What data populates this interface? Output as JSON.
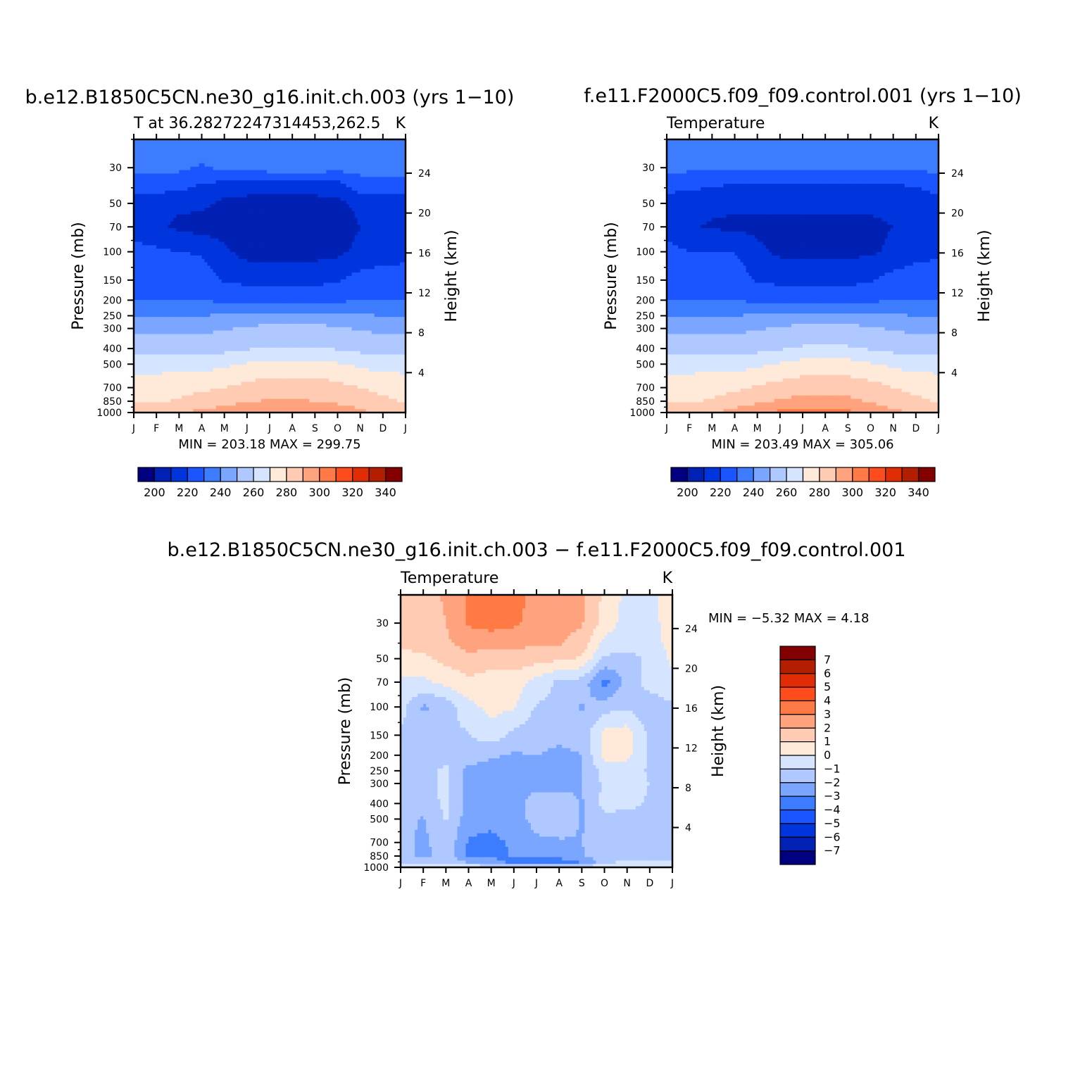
{
  "palette": {
    "cool": [
      "#000080",
      "#0021b4",
      "#0034dc",
      "#1a55ff",
      "#3d7cff",
      "#7aa6ff",
      "#afc8ff",
      "#d5e5ff"
    ],
    "warm": [
      "#ffe9d9",
      "#ffcbb3",
      "#ffa37f",
      "#ff7a45",
      "#ff4c1c",
      "#e02d06",
      "#b31d00",
      "#820000"
    ]
  },
  "chart_data": [
    {
      "type": "heatmap",
      "title": "b.e12.B1850C5CN.ne30_g16.init.ch.003 (yrs 1−10)",
      "left_string": "T at 36.28272247314453,262.5",
      "right_string": "K",
      "xlabel": "",
      "ylabel": "Pressure (mb)",
      "ylabel_right": "Height (km)",
      "x_ticks": [
        "J",
        "F",
        "M",
        "A",
        "M",
        "J",
        "J",
        "A",
        "S",
        "O",
        "N",
        "D",
        "J"
      ],
      "y_ticks": [
        30,
        50,
        70,
        100,
        150,
        200,
        250,
        300,
        400,
        500,
        700,
        850,
        1000
      ],
      "y_right_ticks": [
        24,
        20,
        16,
        12,
        8,
        4
      ],
      "levels": [
        200,
        210,
        220,
        230,
        240,
        250,
        260,
        270,
        280,
        290,
        300,
        310,
        320,
        330,
        340
      ],
      "colorbar_labels": [
        "200",
        "220",
        "240",
        "260",
        "280",
        "300",
        "320",
        "340"
      ],
      "min_max": "MIN = 203.18 MAX = 299.75",
      "values": [
        [
          236,
          236,
          236,
          236,
          236,
          236,
          236,
          236,
          236,
          236,
          236,
          236,
          236
        ],
        [
          233,
          233,
          232,
          229,
          232,
          233,
          235,
          236,
          235,
          234,
          233,
          233,
          233
        ],
        [
          224,
          224,
          222,
          218,
          214,
          212,
          212,
          212,
          212,
          213,
          225,
          227,
          226
        ],
        [
          212,
          212,
          212,
          212,
          208,
          208,
          208,
          208,
          208,
          208,
          212,
          212,
          212
        ],
        [
          214,
          212,
          208,
          206,
          206,
          206,
          206,
          206,
          206,
          206,
          210,
          214,
          216
        ],
        [
          224,
          222,
          220,
          219,
          212,
          206,
          206,
          206,
          206,
          208,
          212,
          214,
          216
        ],
        [
          226,
          226,
          226,
          226,
          219,
          218,
          218,
          218,
          218,
          219,
          224,
          226,
          226
        ],
        [
          230,
          230,
          230,
          230,
          228,
          226,
          225,
          225,
          225,
          228,
          230,
          230,
          230
        ],
        [
          240,
          240,
          240,
          240,
          241,
          243,
          245,
          245,
          245,
          243,
          241,
          240,
          240
        ],
        [
          248,
          248,
          248,
          248,
          249,
          251,
          253,
          253,
          253,
          251,
          249,
          248,
          248
        ],
        [
          256,
          256,
          256,
          256,
          257,
          259,
          261,
          261,
          261,
          259,
          257,
          256,
          256
        ],
        [
          266,
          266,
          266,
          266,
          268,
          271,
          273,
          273,
          273,
          271,
          268,
          266,
          266
        ],
        [
          276,
          276,
          277,
          278,
          280,
          283,
          285,
          285,
          285,
          283,
          280,
          277,
          276
        ],
        [
          279,
          279,
          281,
          284,
          287,
          289,
          291,
          291,
          290,
          288,
          285,
          282,
          279
        ],
        [
          282,
          283,
          285,
          288,
          291,
          294,
          296,
          297,
          295,
          292,
          289,
          285,
          282
        ],
        [
          285,
          286,
          289,
          293,
          296,
          299,
          300,
          300,
          299,
          296,
          292,
          288,
          285
        ]
      ]
    },
    {
      "type": "heatmap",
      "title": "f.e11.F2000C5.f09_f09.control.001 (yrs 1−10)",
      "left_string": "Temperature",
      "right_string": "K",
      "xlabel": "",
      "ylabel": "Pressure (mb)",
      "ylabel_right": "Height (km)",
      "x_ticks": [
        "J",
        "F",
        "M",
        "A",
        "M",
        "J",
        "J",
        "A",
        "S",
        "O",
        "N",
        "D",
        "J"
      ],
      "y_ticks": [
        30,
        50,
        70,
        100,
        150,
        200,
        250,
        300,
        400,
        500,
        700,
        850,
        1000
      ],
      "y_right_ticks": [
        24,
        20,
        16,
        12,
        8,
        4
      ],
      "levels": [
        200,
        210,
        220,
        230,
        240,
        250,
        260,
        270,
        280,
        290,
        300,
        310,
        320,
        330,
        340
      ],
      "colorbar_labels": [
        "200",
        "220",
        "240",
        "260",
        "280",
        "300",
        "320",
        "340"
      ],
      "min_max": "MIN = 203.49 MAX = 305.06",
      "values": [
        [
          234,
          234,
          234,
          234,
          234,
          234,
          234,
          234,
          234,
          234,
          234,
          234,
          234
        ],
        [
          232,
          232,
          232,
          232,
          232,
          232,
          232,
          232,
          232,
          232,
          232,
          232,
          232
        ],
        [
          224,
          222,
          219,
          218,
          216,
          216,
          216,
          216,
          216,
          216,
          218,
          219,
          226
        ],
        [
          212,
          212,
          212,
          212,
          212,
          212,
          212,
          212,
          212,
          212,
          212,
          212,
          212
        ],
        [
          214,
          211,
          209,
          208,
          208,
          208,
          208,
          208,
          208,
          208,
          210,
          214,
          216
        ],
        [
          224,
          220,
          220,
          220,
          212,
          208,
          208,
          208,
          208,
          208,
          212,
          216,
          218
        ],
        [
          226,
          226,
          226,
          226,
          219,
          218,
          218,
          218,
          218,
          219,
          224,
          226,
          226
        ],
        [
          230,
          230,
          230,
          230,
          228,
          226,
          225,
          225,
          225,
          228,
          230,
          230,
          230
        ],
        [
          240,
          240,
          240,
          240,
          241,
          243,
          245,
          245,
          245,
          243,
          241,
          240,
          240
        ],
        [
          248,
          248,
          248,
          248,
          249,
          251,
          253,
          253,
          253,
          251,
          249,
          248,
          248
        ],
        [
          256,
          256,
          256,
          256,
          257,
          259,
          261,
          262,
          261,
          259,
          257,
          256,
          256
        ],
        [
          266,
          266,
          266,
          266,
          268,
          271,
          274,
          274,
          274,
          271,
          268,
          266,
          266
        ],
        [
          276,
          276,
          277,
          278,
          281,
          284,
          286,
          286,
          286,
          284,
          280,
          277,
          276
        ],
        [
          279,
          279,
          281,
          284,
          288,
          291,
          293,
          293,
          292,
          289,
          285,
          282,
          279
        ],
        [
          282,
          283,
          285,
          289,
          293,
          297,
          299,
          299,
          297,
          293,
          289,
          285,
          282
        ],
        [
          285,
          286,
          289,
          294,
          298,
          302,
          304,
          304,
          302,
          298,
          293,
          288,
          285
        ]
      ]
    },
    {
      "type": "heatmap",
      "title": "b.e12.B1850C5CN.ne30_g16.init.ch.003 − f.e11.F2000C5.f09_f09.control.001",
      "left_string": "Temperature",
      "right_string": "K",
      "xlabel": "",
      "ylabel": "Pressure (mb)",
      "ylabel_right": "Height (km)",
      "x_ticks": [
        "J",
        "F",
        "M",
        "A",
        "M",
        "J",
        "J",
        "A",
        "S",
        "O",
        "N",
        "D",
        "J"
      ],
      "y_ticks": [
        30,
        50,
        70,
        100,
        150,
        200,
        250,
        300,
        400,
        500,
        700,
        850,
        1000
      ],
      "y_right_ticks": [
        24,
        20,
        16,
        12,
        8,
        4
      ],
      "levels": [
        -7,
        -6,
        -5,
        -4,
        -3,
        -2,
        -1,
        0,
        1,
        2,
        3,
        4,
        5,
        6,
        7
      ],
      "colorbar_labels": [
        "7",
        "6",
        "5",
        "4",
        "3",
        "2",
        "1",
        "0",
        "−1",
        "−2",
        "−3",
        "−4",
        "−5",
        "−6",
        "−7"
      ],
      "min_max": "MIN =   −5.32  MAX =     4.18",
      "values": [
        [
          1.6,
          1.7,
          2.1,
          3.2,
          3.6,
          3.4,
          2.6,
          2.3,
          2.1,
          0.8,
          -0.3,
          -0.3,
          0.6
        ],
        [
          1.5,
          1.6,
          2.0,
          3.1,
          3.4,
          3.2,
          2.6,
          2.3,
          2.1,
          0.6,
          -0.5,
          -0.4,
          0.5
        ],
        [
          1.2,
          1.4,
          1.8,
          2.5,
          2.4,
          2.2,
          2.2,
          2.1,
          1.6,
          -0.3,
          -0.6,
          -0.4,
          0.3
        ],
        [
          0.6,
          0.8,
          1.3,
          1.6,
          1.5,
          1.6,
          1.4,
          1.2,
          0.9,
          -1.2,
          -1.4,
          -0.8,
          0.2
        ],
        [
          -0.2,
          -0.2,
          0.3,
          0.8,
          0.5,
          0.5,
          -0.4,
          -1.2,
          -1.4,
          -3.4,
          -1.6,
          -0.6,
          -0.2
        ],
        [
          -0.6,
          -2.2,
          -1.6,
          -0.3,
          0.3,
          0.1,
          -1.1,
          -1.3,
          -2.1,
          -1.4,
          -1.2,
          -1.6,
          -1.2
        ],
        [
          -1.2,
          -1.3,
          -1.2,
          -1.1,
          -0.4,
          -1.3,
          -1.6,
          -1.8,
          -1.7,
          0.4,
          0.6,
          -1.3,
          -1.4
        ],
        [
          -1.3,
          -1.4,
          -1.3,
          -1.5,
          -1.9,
          -2.1,
          -2.0,
          -2.2,
          -2.0,
          0.3,
          0.3,
          -1.2,
          -1.3
        ],
        [
          -1.3,
          -1.4,
          -0.8,
          -2.3,
          -2.4,
          -2.3,
          -2.2,
          -2.3,
          -2.0,
          -0.6,
          -0.6,
          -1.1,
          -1.2
        ],
        [
          -1.3,
          -1.4,
          -0.7,
          -2.4,
          -2.3,
          -2.2,
          -2.3,
          -2.4,
          -2.0,
          -0.8,
          -0.7,
          -1.0,
          -1.1
        ],
        [
          -1.4,
          -1.5,
          -0.8,
          -2.3,
          -2.4,
          -2.4,
          -1.6,
          -1.5,
          -2.1,
          -0.7,
          -0.8,
          -1.1,
          -1.2
        ],
        [
          -1.6,
          -2.1,
          -0.9,
          -2.6,
          -2.7,
          -2.5,
          -1.6,
          -1.5,
          -2.1,
          -1.2,
          -1.3,
          -1.1,
          -1.0
        ],
        [
          -1.5,
          -2.3,
          -1.2,
          -3.1,
          -3.3,
          -2.8,
          -2.2,
          -2.1,
          -2.0,
          -1.4,
          -1.2,
          -1.3,
          -1.2
        ],
        [
          -1.4,
          -2.4,
          -1.3,
          -3.3,
          -3.4,
          -2.9,
          -2.4,
          -2.2,
          -2.1,
          -1.5,
          -1.3,
          -1.4,
          -1.2
        ],
        [
          -1.4,
          -1.6,
          -1.5,
          -2.2,
          -2.4,
          -3.6,
          -4.2,
          -4.0,
          -3.1,
          -1.4,
          -0.7,
          -0.6,
          -0.9
        ],
        [
          -0.2,
          -0.2,
          -0.2,
          -0.3,
          -0.5,
          -0.6,
          -0.6,
          -0.6,
          -0.5,
          -0.3,
          -0.2,
          -0.1,
          -0.1
        ]
      ]
    }
  ]
}
